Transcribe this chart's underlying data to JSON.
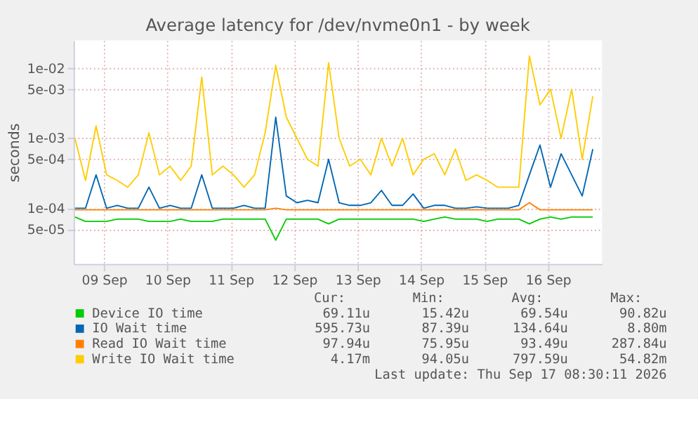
{
  "chart_data": {
    "type": "line",
    "title": "Average latency for /dev/nvme0n1 - by week",
    "ylabel": "seconds",
    "x": [
      "2026-09-09T01:00",
      "2026-09-09T05:00",
      "2026-09-09T09:00",
      "2026-09-09T13:00",
      "2026-09-09T17:00",
      "2026-09-09T21:00",
      "2026-09-10T01:00",
      "2026-09-10T05:00",
      "2026-09-10T09:00",
      "2026-09-10T13:00",
      "2026-09-10T17:00",
      "2026-09-10T21:00",
      "2026-09-11T01:00",
      "2026-09-11T05:00",
      "2026-09-11T09:00",
      "2026-09-11T13:00",
      "2026-09-11T17:00",
      "2026-09-11T21:00",
      "2026-09-12T01:00",
      "2026-09-12T05:00",
      "2026-09-12T09:00",
      "2026-09-12T13:00",
      "2026-09-12T17:00",
      "2026-09-12T21:00",
      "2026-09-13T01:00",
      "2026-09-13T05:00",
      "2026-09-13T09:00",
      "2026-09-13T13:00",
      "2026-09-13T17:00",
      "2026-09-13T21:00",
      "2026-09-14T01:00",
      "2026-09-14T05:00",
      "2026-09-14T09:00",
      "2026-09-14T13:00",
      "2026-09-14T17:00",
      "2026-09-14T21:00",
      "2026-09-15T01:00",
      "2026-09-15T05:00",
      "2026-09-15T09:00",
      "2026-09-15T13:00",
      "2026-09-15T17:00",
      "2026-09-15T21:00",
      "2026-09-16T01:00",
      "2026-09-16T05:00",
      "2026-09-16T09:00",
      "2026-09-16T13:00",
      "2026-09-16T17:00",
      "2026-09-16T21:00",
      "2026-09-17T01:00",
      "2026-09-17T05:00"
    ],
    "series": [
      {
        "name": "Device IO time",
        "color": "#00cc00",
        "values": [
          7.5e-05,
          6.5e-05,
          6.5e-05,
          6.5e-05,
          7e-05,
          7e-05,
          7e-05,
          6.5e-05,
          6.5e-05,
          6.5e-05,
          7e-05,
          6.5e-05,
          6.5e-05,
          6.5e-05,
          7e-05,
          7e-05,
          7e-05,
          7e-05,
          7e-05,
          3.5e-05,
          7e-05,
          7e-05,
          7e-05,
          7e-05,
          6e-05,
          7e-05,
          7e-05,
          7e-05,
          7e-05,
          7e-05,
          7e-05,
          7e-05,
          7e-05,
          6.5e-05,
          7e-05,
          7.5e-05,
          7e-05,
          7e-05,
          7e-05,
          6.5e-05,
          7e-05,
          7e-05,
          7e-05,
          6e-05,
          7e-05,
          7.5e-05,
          7e-05,
          7.5e-05,
          7.5e-05,
          7.5e-05
        ]
      },
      {
        "name": "IO Wait time",
        "color": "#0066b3",
        "values": [
          0.0001,
          0.0001,
          0.0003,
          0.0001,
          0.00011,
          0.0001,
          0.0001,
          0.0002,
          0.0001,
          0.00011,
          0.0001,
          0.0001,
          0.0003,
          0.0001,
          0.0001,
          0.0001,
          0.00011,
          0.0001,
          0.0001,
          0.002,
          0.00015,
          0.00012,
          0.00013,
          0.00012,
          0.0005,
          0.00012,
          0.00011,
          0.00011,
          0.00012,
          0.00018,
          0.00011,
          0.00011,
          0.00016,
          0.0001,
          0.00011,
          0.00011,
          0.0001,
          0.0001,
          0.000105,
          0.0001,
          0.0001,
          0.0001,
          0.00011,
          0.0003,
          0.0008,
          0.0002,
          0.0006,
          0.0003,
          0.00015,
          0.0007
        ]
      },
      {
        "name": "Read IO Wait time",
        "color": "#ff8000",
        "values": [
          9.5e-05,
          9.5e-05,
          9.5e-05,
          9.5e-05,
          9.5e-05,
          9.5e-05,
          9.5e-05,
          9.5e-05,
          9.5e-05,
          9.5e-05,
          9.5e-05,
          9.5e-05,
          9.5e-05,
          9.5e-05,
          9.5e-05,
          9.5e-05,
          9.5e-05,
          9.5e-05,
          9.5e-05,
          0.0001,
          9.5e-05,
          9.5e-05,
          9.5e-05,
          9.5e-05,
          9.5e-05,
          9.5e-05,
          9.5e-05,
          9.5e-05,
          9.5e-05,
          9.5e-05,
          9.5e-05,
          9.5e-05,
          9.5e-05,
          9.5e-05,
          9.5e-05,
          9.5e-05,
          9.5e-05,
          9.5e-05,
          9.5e-05,
          9.5e-05,
          9.5e-05,
          9.5e-05,
          9.5e-05,
          0.00012,
          9.5e-05,
          9.5e-05,
          9.5e-05,
          9.5e-05,
          9.5e-05,
          9.5e-05
        ]
      },
      {
        "name": "Write IO Wait time",
        "color": "#ffcc00",
        "values": [
          0.001,
          0.00025,
          0.0015,
          0.0003,
          0.00025,
          0.0002,
          0.0003,
          0.0012,
          0.0003,
          0.0004,
          0.00025,
          0.0004,
          0.0075,
          0.0003,
          0.0004,
          0.0003,
          0.0002,
          0.0003,
          0.0012,
          0.011,
          0.002,
          0.001,
          0.0005,
          0.0004,
          0.012,
          0.001,
          0.0004,
          0.0005,
          0.0003,
          0.001,
          0.0004,
          0.001,
          0.0003,
          0.0005,
          0.0006,
          0.0003,
          0.0007,
          0.00025,
          0.0003,
          0.00025,
          0.0002,
          0.0002,
          0.0002,
          0.015,
          0.003,
          0.005,
          0.001,
          0.005,
          0.0005,
          0.004
        ]
      }
    ],
    "log": "y",
    "ylim": [
      1.6e-05,
      0.025
    ],
    "yticks": [
      {
        "value": 5e-05,
        "label": "5e-05"
      },
      {
        "value": 0.0001,
        "label": "1e-04"
      },
      {
        "value": 0.0005,
        "label": "5e-04"
      },
      {
        "value": 0.001,
        "label": "1e-03"
      },
      {
        "value": 0.005,
        "label": "5e-03"
      },
      {
        "value": 0.01,
        "label": "1e-02"
      }
    ],
    "xlim": [
      "2026-09-09T00:30",
      "2026-09-17T08:30"
    ],
    "xticks": [
      {
        "value": "2026-09-09T12:00",
        "label": "09 Sep"
      },
      {
        "value": "2026-09-10T12:00",
        "label": "10 Sep"
      },
      {
        "value": "2026-09-11T12:00",
        "label": "11 Sep"
      },
      {
        "value": "2026-09-12T12:00",
        "label": "12 Sep"
      },
      {
        "value": "2026-09-13T12:00",
        "label": "13 Sep"
      },
      {
        "value": "2026-09-14T12:00",
        "label": "14 Sep"
      },
      {
        "value": "2026-09-15T12:00",
        "label": "15 Sep"
      },
      {
        "value": "2026-09-16T12:00",
        "label": "16 Sep"
      }
    ],
    "grid": true,
    "legend": "bottom",
    "line_style": "solid",
    "marker": "none",
    "annotations": [
      "Cur:",
      "Min:",
      "Avg:",
      "Max:",
      "69.11u",
      "15.42u",
      "69.54u",
      "90.82u",
      "595.73u",
      "87.39u",
      "134.64u",
      "8.80m",
      "97.94u",
      "75.95u",
      "93.49u",
      "287.84u",
      "4.17m",
      "94.05u",
      "797.59u",
      "54.82m",
      "Last update: Thu Sep 17 08:30:11 2026"
    ]
  }
}
